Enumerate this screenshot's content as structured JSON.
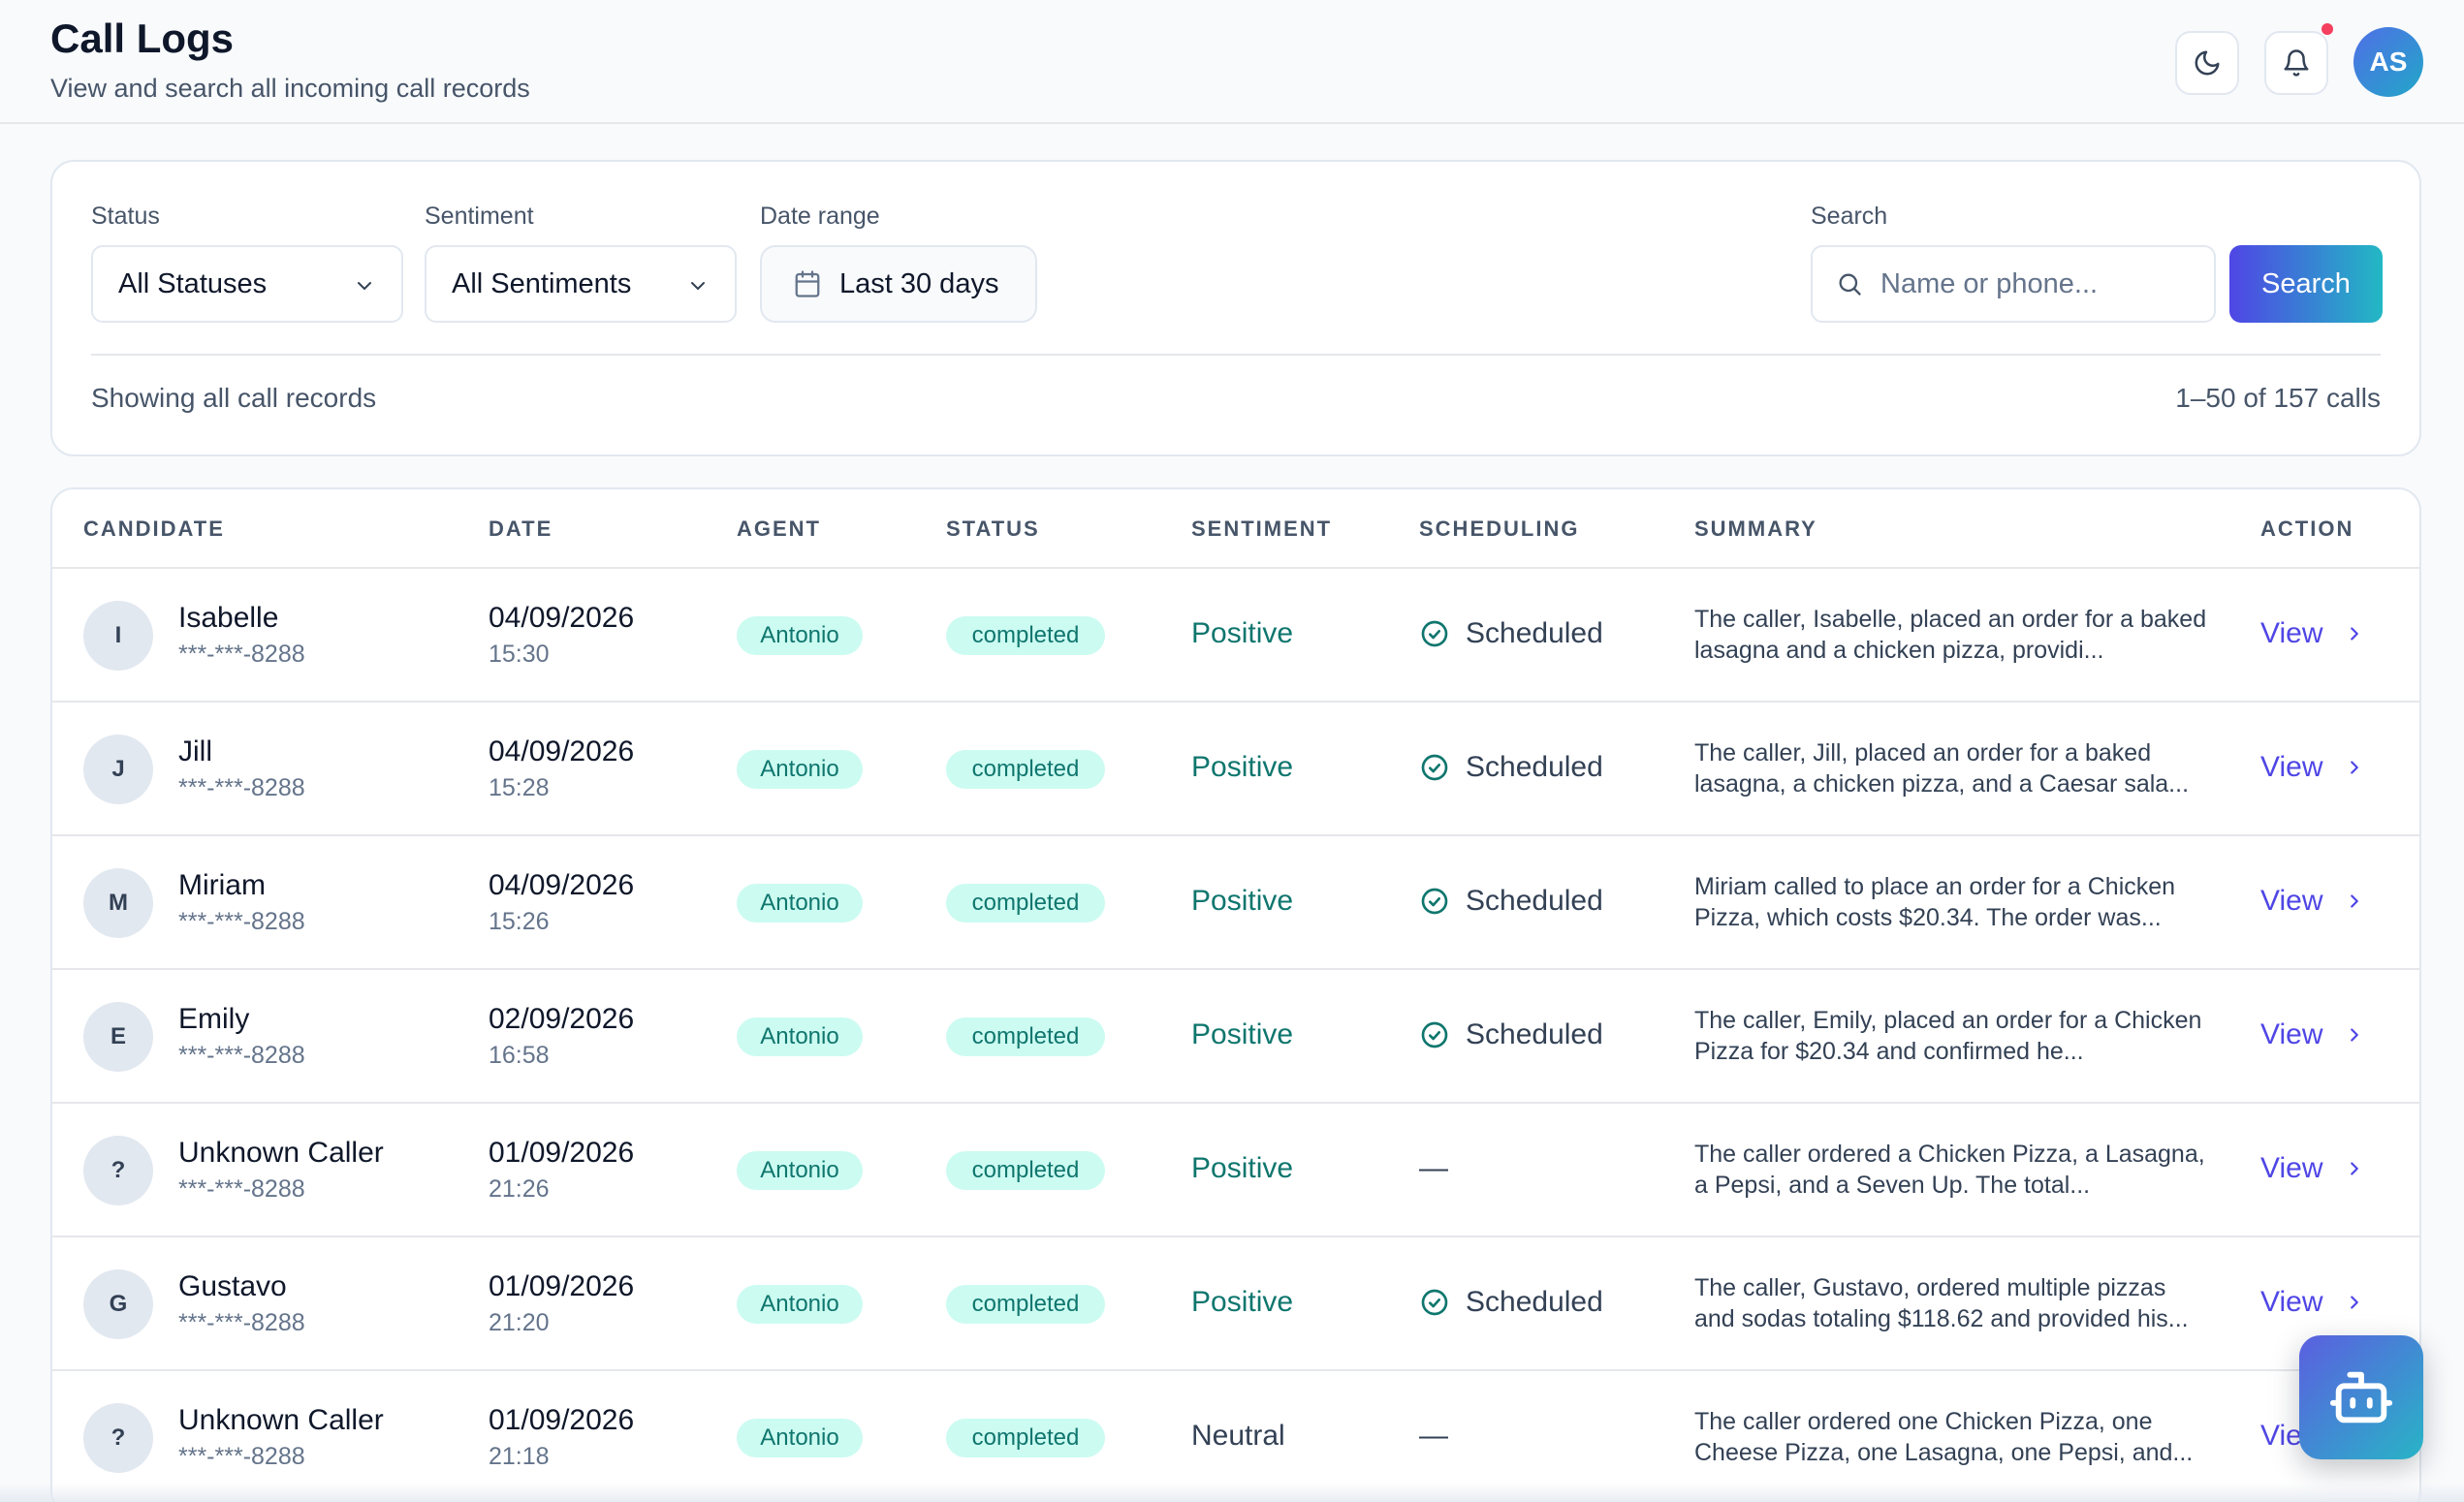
{
  "header": {
    "title": "Call Logs",
    "subtitle": "View and search all incoming call records",
    "user_initials": "AS",
    "icons": [
      "moon-icon",
      "bell-icon"
    ],
    "notification_dot_color": "#f43f5e"
  },
  "filters": {
    "status_label": "Status",
    "status_value": "All Statuses",
    "sentiment_label": "Sentiment",
    "sentiment_value": "All Sentiments",
    "date_label": "Date range",
    "date_value": "Last 30 days",
    "search_label": "Search",
    "search_placeholder": "Name or phone...",
    "search_button": "Search",
    "showing_text": "Showing all call records",
    "count_text": "1–50 of 157 calls"
  },
  "table": {
    "columns": [
      "CANDIDATE",
      "DATE",
      "AGENT",
      "STATUS",
      "SENTIMENT",
      "SCHEDULING",
      "SUMMARY",
      "ACTION"
    ],
    "rows": [
      {
        "initial": "I",
        "name": "Isabelle",
        "phone": "***-***-8288",
        "date": "04/09/2026",
        "time": "15:30",
        "agent": "Antonio",
        "status": "completed",
        "sentiment": "Positive",
        "scheduling": "Scheduled",
        "summary": "The caller, Isabelle, placed an order for a baked lasagna and a chicken pizza, providi...",
        "action": "View"
      },
      {
        "initial": "J",
        "name": "Jill",
        "phone": "***-***-8288",
        "date": "04/09/2026",
        "time": "15:28",
        "agent": "Antonio",
        "status": "completed",
        "sentiment": "Positive",
        "scheduling": "Scheduled",
        "summary": "The caller, Jill, placed an order for a baked lasagna, a chicken pizza, and a Caesar sala...",
        "action": "View"
      },
      {
        "initial": "M",
        "name": "Miriam",
        "phone": "***-***-8288",
        "date": "04/09/2026",
        "time": "15:26",
        "agent": "Antonio",
        "status": "completed",
        "sentiment": "Positive",
        "scheduling": "Scheduled",
        "summary": "Miriam called to place an order for a Chicken Pizza, which costs $20.34. The order was...",
        "action": "View"
      },
      {
        "initial": "E",
        "name": "Emily",
        "phone": "***-***-8288",
        "date": "02/09/2026",
        "time": "16:58",
        "agent": "Antonio",
        "status": "completed",
        "sentiment": "Positive",
        "scheduling": "Scheduled",
        "summary": "The caller, Emily, placed an order for a Chicken Pizza for $20.34 and confirmed he...",
        "action": "View"
      },
      {
        "initial": "?",
        "name": "Unknown Caller",
        "phone": "***-***-8288",
        "date": "01/09/2026",
        "time": "21:26",
        "agent": "Antonio",
        "status": "completed",
        "sentiment": "Positive",
        "scheduling": "—",
        "summary": "The caller ordered a Chicken Pizza, a Lasagna, a Pepsi, and a Seven Up. The total...",
        "action": "View"
      },
      {
        "initial": "G",
        "name": "Gustavo",
        "phone": "***-***-8288",
        "date": "01/09/2026",
        "time": "21:20",
        "agent": "Antonio",
        "status": "completed",
        "sentiment": "Positive",
        "scheduling": "Scheduled",
        "summary": "The caller, Gustavo, ordered multiple pizzas and sodas totaling $118.62 and provided his...",
        "action": "View"
      },
      {
        "initial": "?",
        "name": "Unknown Caller",
        "phone": "***-***-8288",
        "date": "01/09/2026",
        "time": "21:18",
        "agent": "Antonio",
        "status": "completed",
        "sentiment": "Neutral",
        "scheduling": "—",
        "summary": "The caller ordered one Chicken Pizza, one Cheese Pizza, one Lasagna, one Pepsi, and...",
        "action": "View"
      }
    ]
  },
  "colors": {
    "accent": "#4f46e5",
    "teal": "#0f766e",
    "pill_bg": "#ccfbf1"
  },
  "fab": {
    "icon": "bot-icon"
  }
}
